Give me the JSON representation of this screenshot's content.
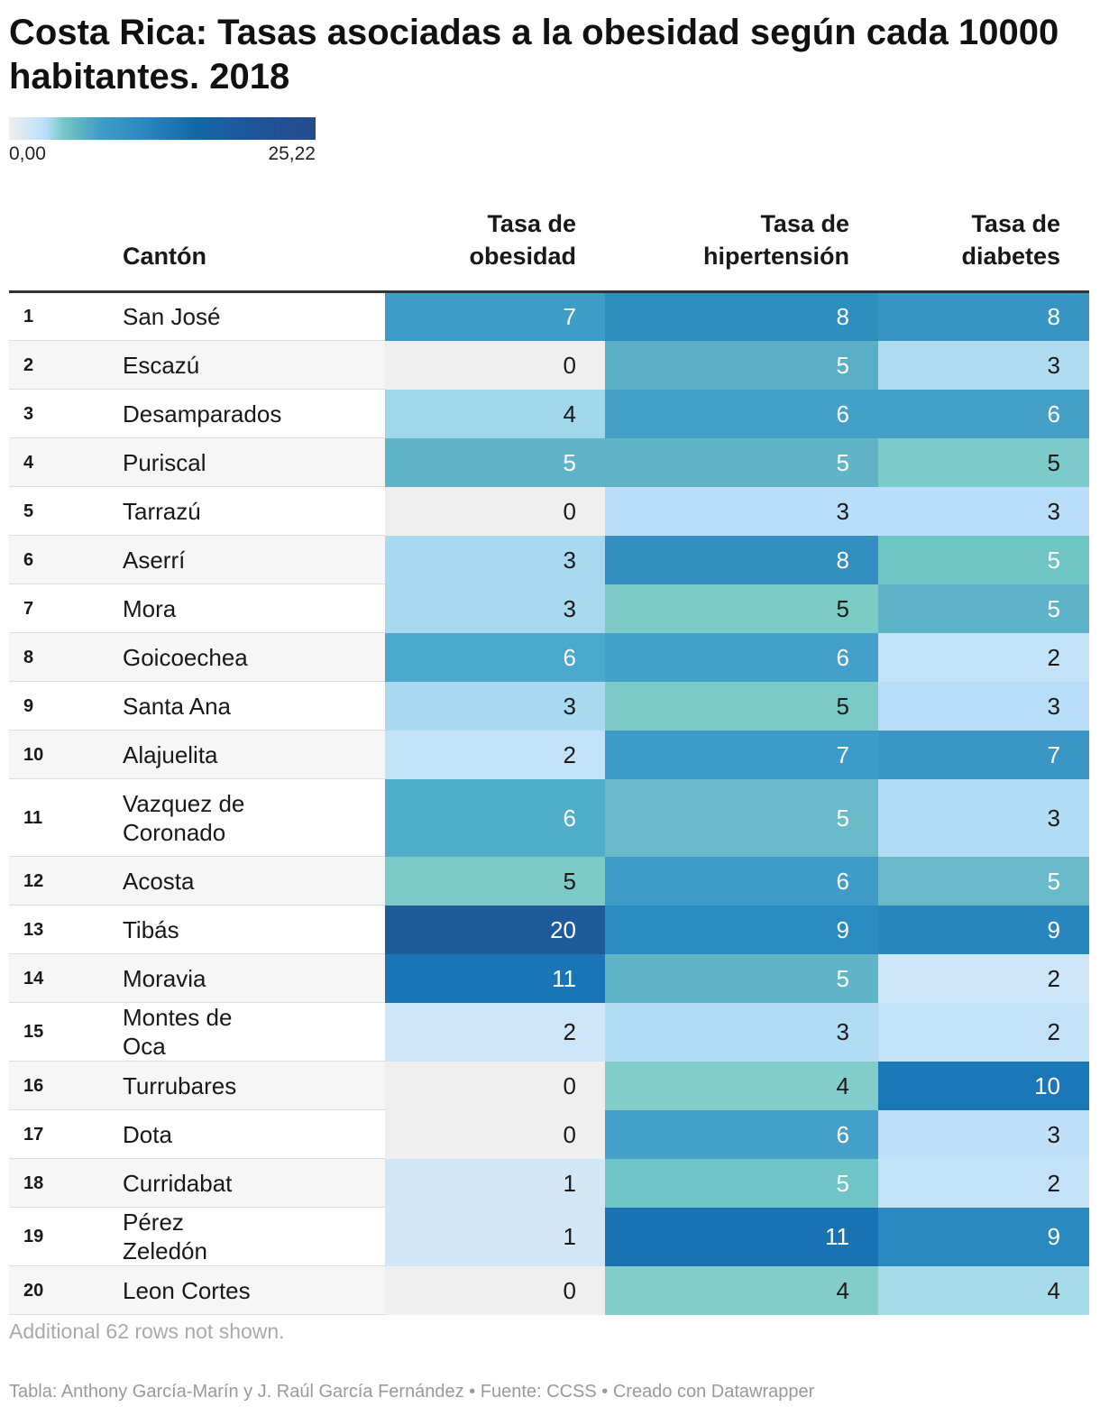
{
  "title": "Costa Rica: Tasas asociadas a la obesidad según cada 10000 habitantes. 2018",
  "legend": {
    "min": "0,00",
    "max": "25,22"
  },
  "chart_data": {
    "type": "table",
    "columns": [
      "",
      "Cantón",
      "Tasa de obesidad",
      "Tasa de hipertensión",
      "Tasa de diabetes"
    ],
    "rows": [
      {
        "rank": "1",
        "name": "San José",
        "values": [
          7,
          8,
          8
        ],
        "colors": [
          "#3f9cc6",
          "#2f8ec0",
          "#3894c2"
        ]
      },
      {
        "rank": "2",
        "name": "Escazú",
        "values": [
          0,
          5,
          3
        ],
        "colors": [
          "#efefef",
          "#5aafc7",
          "#b0dcf2"
        ]
      },
      {
        "rank": "3",
        "name": "Desamparados",
        "values": [
          4,
          6,
          6
        ],
        "colors": [
          "#a1d8e9",
          "#44a0c6",
          "#44a0c6"
        ]
      },
      {
        "rank": "4",
        "name": "Puriscal",
        "values": [
          5,
          5,
          5
        ],
        "colors": [
          "#5fb4c7",
          "#5fb4c7",
          "#7ccaca"
        ]
      },
      {
        "rank": "5",
        "name": "Tarrazú",
        "values": [
          0,
          3,
          3
        ],
        "colors": [
          "#efefef",
          "#b8defa",
          "#b8defa"
        ]
      },
      {
        "rank": "6",
        "name": "Aserrí",
        "values": [
          3,
          8,
          5
        ],
        "colors": [
          "#a8d9ef",
          "#338fc0",
          "#6fc4c4"
        ]
      },
      {
        "rank": "7",
        "name": "Mora",
        "values": [
          3,
          5,
          5
        ],
        "colors": [
          "#a8d9ef",
          "#7ccac6",
          "#5fb3c8"
        ]
      },
      {
        "rank": "8",
        "name": "Goicoechea",
        "values": [
          6,
          6,
          2
        ],
        "colors": [
          "#4aa8cb",
          "#44a0c9",
          "#c3e2f8"
        ]
      },
      {
        "rank": "9",
        "name": "Santa Ana",
        "values": [
          3,
          5,
          3
        ],
        "colors": [
          "#a8d9ef",
          "#7ccac8",
          "#b8defa"
        ]
      },
      {
        "rank": "10",
        "name": "Alajuelita",
        "values": [
          2,
          7,
          7
        ],
        "colors": [
          "#c3e2f8",
          "#3c9bc8",
          "#3a97c5"
        ]
      },
      {
        "rank": "11",
        "name": "Vazquez de Coronado",
        "values": [
          6,
          5,
          3
        ],
        "colors": [
          "#51aecb",
          "#68bac8",
          "#b0dcf5"
        ]
      },
      {
        "rank": "12",
        "name": "Acosta",
        "values": [
          5,
          6,
          5
        ],
        "colors": [
          "#7ccac8",
          "#3f9cc8",
          "#68bac8"
        ]
      },
      {
        "rank": "13",
        "name": "Tibás",
        "values": [
          20,
          9,
          9
        ],
        "colors": [
          "#1f5a9a",
          "#2a8bc0",
          "#2a86be"
        ]
      },
      {
        "rank": "14",
        "name": "Moravia",
        "values": [
          11,
          5,
          2
        ],
        "colors": [
          "#1a75b6",
          "#60b4c8",
          "#cde6f8"
        ]
      },
      {
        "rank": "15",
        "name": "Montes de Oca",
        "values": [
          2,
          3,
          2
        ],
        "colors": [
          "#cfe5f8",
          "#b0dcf4",
          "#c3e2f8"
        ]
      },
      {
        "rank": "16",
        "name": "Turrubares",
        "values": [
          0,
          4,
          10
        ],
        "colors": [
          "#efefef",
          "#82cccc",
          "#1a78b8"
        ]
      },
      {
        "rank": "17",
        "name": "Dota",
        "values": [
          0,
          6,
          3
        ],
        "colors": [
          "#efefef",
          "#44a0c9",
          "#bfe0f8"
        ]
      },
      {
        "rank": "18",
        "name": "Curridabat",
        "values": [
          1,
          5,
          2
        ],
        "colors": [
          "#d3e6f5",
          "#6fc4c8",
          "#c3e2f8"
        ]
      },
      {
        "rank": "19",
        "name": "Pérez Zeledón",
        "values": [
          1,
          11,
          9
        ],
        "colors": [
          "#d3e6f5",
          "#1a72b2",
          "#2a88c0"
        ]
      },
      {
        "rank": "20",
        "name": "Leon Cortes",
        "values": [
          0,
          4,
          4
        ],
        "colors": [
          "#efefef",
          "#82cccc",
          "#a8dbea"
        ]
      }
    ],
    "color_scale": {
      "min": 0,
      "max": 25.22
    }
  },
  "note": "Additional 62 rows not shown.",
  "credit": "Tabla: Anthony García-Marín y J. Raúl García Fernández • Fuente: CCSS • Creado con Datawrapper"
}
